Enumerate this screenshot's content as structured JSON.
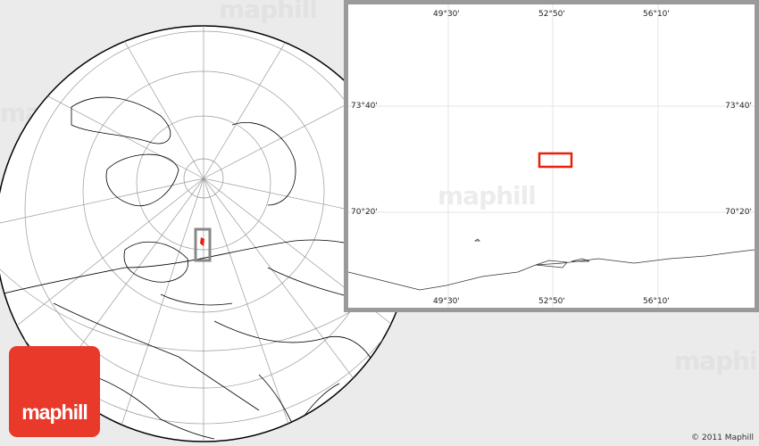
{
  "watermark": "maphill",
  "inset": {
    "longitude_labels": [
      "49°30'",
      "52°50'",
      "56°10'"
    ],
    "latitude_labels": [
      "73°40'",
      "70°20'"
    ],
    "highlight_color": "#e8200c"
  },
  "logo": {
    "text": "maphill",
    "color": "#e8392a"
  },
  "copyright": "© 2011 Maphill"
}
